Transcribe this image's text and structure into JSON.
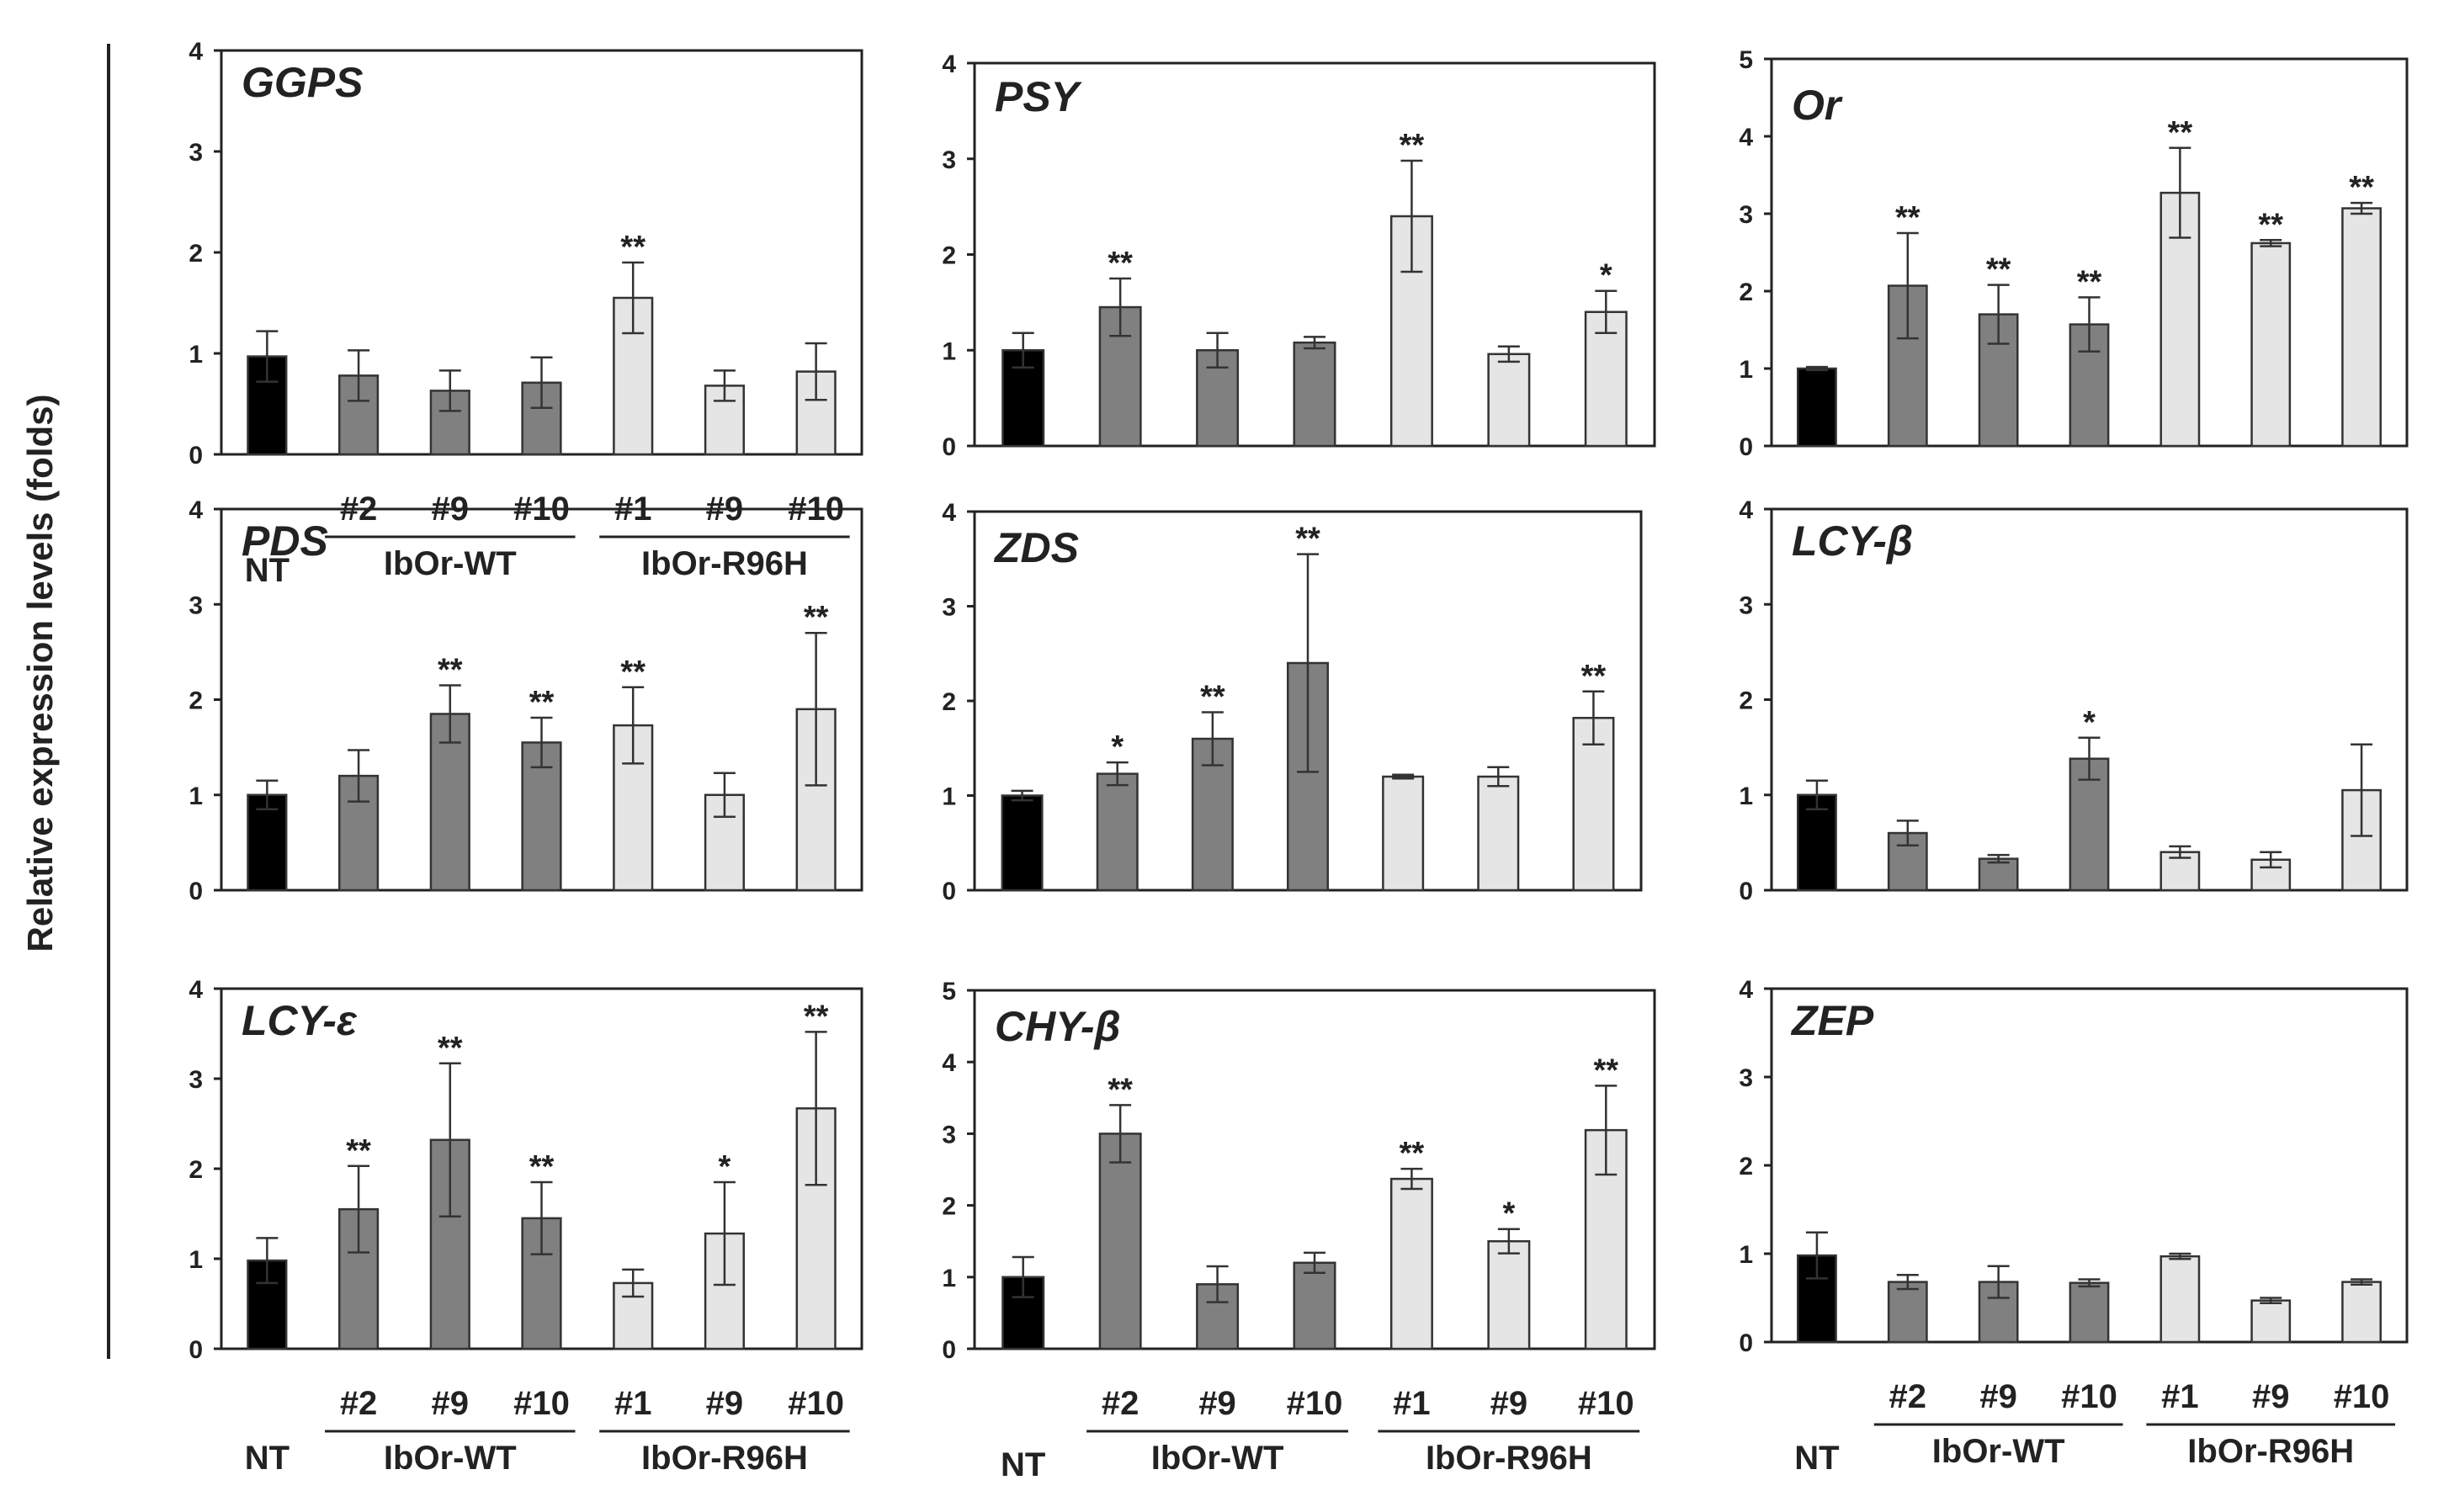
{
  "figure": {
    "ylabel": "Relative expression levels (folds)"
  },
  "chart_data": [
    {
      "type": "bar",
      "title": "GGPS",
      "ylim": [
        0,
        4
      ],
      "yticks": [
        "0",
        "1",
        "2",
        "3",
        "4"
      ],
      "categories": [
        "NT",
        "#2",
        "#9",
        "#10",
        "#1",
        "#9",
        "#10"
      ],
      "values": [
        0.97,
        0.78,
        0.63,
        0.71,
        1.55,
        0.68,
        0.82
      ],
      "errors": [
        0.25,
        0.25,
        0.2,
        0.25,
        0.35,
        0.15,
        0.28
      ],
      "marks": [
        "",
        "",
        "",
        "",
        "**",
        "",
        ""
      ],
      "groups": [
        "NT",
        "WT",
        "WT",
        "WT",
        "R96H",
        "R96H",
        "R96H"
      ],
      "xlabels": [
        "",
        "#2",
        "#9",
        "#10",
        "#1",
        "#9",
        "#10"
      ],
      "group_labels": {
        "nt": "NT",
        "wt": "IbOr-WT",
        "r96h": "IbOr-R96H"
      }
    },
    {
      "type": "bar",
      "title": "PSY",
      "ylim": [
        0,
        4
      ],
      "yticks": [
        "0",
        "1",
        "2",
        "3",
        "4"
      ],
      "categories": [
        "NT",
        "#2",
        "#9",
        "#10",
        "#1",
        "#9",
        "#10"
      ],
      "values": [
        1.0,
        1.45,
        1.0,
        1.08,
        2.4,
        0.96,
        1.4
      ],
      "errors": [
        0.18,
        0.3,
        0.18,
        0.06,
        0.58,
        0.08,
        0.22
      ],
      "marks": [
        "",
        "**",
        "",
        "",
        "**",
        "",
        "*"
      ],
      "groups": [
        "NT",
        "WT",
        "WT",
        "WT",
        "R96H",
        "R96H",
        "R96H"
      ],
      "xlabels": [
        "",
        "",
        "",
        "",
        "",
        "",
        ""
      ],
      "group_labels": {
        "nt": "",
        "wt": "",
        "r96h": ""
      }
    },
    {
      "type": "bar",
      "title": "Or",
      "ylim": [
        0,
        5
      ],
      "yticks": [
        "0",
        "1",
        "2",
        "3",
        "4",
        "5"
      ],
      "categories": [
        "NT",
        "#2",
        "#9",
        "#10",
        "#1",
        "#9",
        "#10"
      ],
      "values": [
        1.0,
        2.07,
        1.7,
        1.57,
        3.27,
        2.62,
        3.07
      ],
      "errors": [
        0.02,
        0.68,
        0.38,
        0.35,
        0.58,
        0.04,
        0.07
      ],
      "marks": [
        "",
        "**",
        "**",
        "**",
        "**",
        "**",
        "**"
      ],
      "groups": [
        "NT",
        "WT",
        "WT",
        "WT",
        "R96H",
        "R96H",
        "R96H"
      ],
      "xlabels": [
        "",
        "",
        "",
        "",
        "",
        "",
        ""
      ],
      "group_labels": {
        "nt": "",
        "wt": "",
        "r96h": ""
      }
    },
    {
      "type": "bar",
      "title": "PDS",
      "ylim": [
        0,
        4
      ],
      "yticks": [
        "0",
        "1",
        "2",
        "3",
        "4"
      ],
      "categories": [
        "NT",
        "#2",
        "#9",
        "#10",
        "#1",
        "#9",
        "#10"
      ],
      "values": [
        1.0,
        1.2,
        1.85,
        1.55,
        1.73,
        1.0,
        1.9
      ],
      "errors": [
        0.15,
        0.27,
        0.3,
        0.26,
        0.4,
        0.23,
        0.8
      ],
      "marks": [
        "",
        "",
        "**",
        "**",
        "**",
        "",
        "**"
      ],
      "groups": [
        "NT",
        "WT",
        "WT",
        "WT",
        "R96H",
        "R96H",
        "R96H"
      ],
      "xlabels": [
        "",
        "",
        "",
        "",
        "",
        "",
        ""
      ],
      "group_labels": {
        "nt": "",
        "wt": "",
        "r96h": ""
      }
    },
    {
      "type": "bar",
      "title": "ZDS",
      "ylim": [
        0,
        4
      ],
      "yticks": [
        "0",
        "1",
        "2",
        "3",
        "4"
      ],
      "categories": [
        "NT",
        "#2",
        "#9",
        "#10",
        "#1",
        "#9",
        "#10"
      ],
      "values": [
        1.0,
        1.23,
        1.6,
        2.4,
        1.2,
        1.2,
        1.82
      ],
      "errors": [
        0.05,
        0.12,
        0.28,
        1.15,
        0.02,
        0.1,
        0.28
      ],
      "marks": [
        "",
        "*",
        "**",
        "**",
        "",
        "",
        "**"
      ],
      "groups": [
        "NT",
        "WT",
        "WT",
        "WT",
        "R96H",
        "R96H",
        "R96H"
      ],
      "xlabels": [
        "",
        "",
        "",
        "",
        "",
        "",
        ""
      ],
      "group_labels": {
        "nt": "",
        "wt": "",
        "r96h": ""
      }
    },
    {
      "type": "bar",
      "title": "LCY-β",
      "ylim": [
        0,
        4
      ],
      "yticks": [
        "0",
        "1",
        "2",
        "3",
        "4"
      ],
      "categories": [
        "NT",
        "#2",
        "#9",
        "#10",
        "#1",
        "#9",
        "#10"
      ],
      "values": [
        1.0,
        0.6,
        0.33,
        1.38,
        0.4,
        0.32,
        1.05
      ],
      "errors": [
        0.15,
        0.13,
        0.04,
        0.22,
        0.06,
        0.08,
        0.48
      ],
      "marks": [
        "",
        "",
        "",
        "*",
        "",
        "",
        ""
      ],
      "groups": [
        "NT",
        "WT",
        "WT",
        "WT",
        "R96H",
        "R96H",
        "R96H"
      ],
      "xlabels": [
        "",
        "",
        "",
        "",
        "",
        "",
        ""
      ],
      "group_labels": {
        "nt": "",
        "wt": "",
        "r96h": ""
      }
    },
    {
      "type": "bar",
      "title": "LCY-ε",
      "ylim": [
        0,
        4
      ],
      "yticks": [
        "0",
        "1",
        "2",
        "3",
        "4"
      ],
      "categories": [
        "NT",
        "#2",
        "#9",
        "#10",
        "#1",
        "#9",
        "#10"
      ],
      "values": [
        0.98,
        1.55,
        2.32,
        1.45,
        0.73,
        1.28,
        2.67
      ],
      "errors": [
        0.25,
        0.48,
        0.85,
        0.4,
        0.15,
        0.57,
        0.85
      ],
      "marks": [
        "",
        "**",
        "**",
        "**",
        "",
        "*",
        "**"
      ],
      "groups": [
        "NT",
        "WT",
        "WT",
        "WT",
        "R96H",
        "R96H",
        "R96H"
      ],
      "xlabels": [
        "",
        "#2",
        "#9",
        "#10",
        "#1",
        "#9",
        "#10"
      ],
      "group_labels": {
        "nt": "NT",
        "wt": "IbOr-WT",
        "r96h": "IbOr-R96H"
      }
    },
    {
      "type": "bar",
      "title": "CHY-β",
      "ylim": [
        0,
        5
      ],
      "yticks": [
        "0",
        "1",
        "2",
        "3",
        "4",
        "5"
      ],
      "categories": [
        "NT",
        "#2",
        "#9",
        "#10",
        "#1",
        "#9",
        "#10"
      ],
      "values": [
        1.0,
        3.0,
        0.9,
        1.2,
        2.37,
        1.5,
        3.05
      ],
      "errors": [
        0.28,
        0.4,
        0.25,
        0.14,
        0.14,
        0.17,
        0.62
      ],
      "marks": [
        "",
        "**",
        "",
        "",
        "**",
        "*",
        "**"
      ],
      "groups": [
        "NT",
        "WT",
        "WT",
        "WT",
        "R96H",
        "R96H",
        "R96H"
      ],
      "xlabels": [
        "",
        "#2",
        "#9",
        "#10",
        "#1",
        "#9",
        "#10"
      ],
      "group_labels": {
        "nt": "NT",
        "wt": "IbOr-WT",
        "r96h": "IbOr-R96H"
      }
    },
    {
      "type": "bar",
      "title": "ZEP",
      "ylim": [
        0,
        4
      ],
      "yticks": [
        "0",
        "1",
        "2",
        "3",
        "4"
      ],
      "categories": [
        "NT",
        "#2",
        "#9",
        "#10",
        "#1",
        "#9",
        "#10"
      ],
      "values": [
        0.98,
        0.68,
        0.68,
        0.67,
        0.97,
        0.47,
        0.68
      ],
      "errors": [
        0.26,
        0.08,
        0.18,
        0.04,
        0.03,
        0.03,
        0.03
      ],
      "marks": [
        "",
        "",
        "",
        "",
        "",
        "",
        ""
      ],
      "groups": [
        "NT",
        "WT",
        "WT",
        "WT",
        "R96H",
        "R96H",
        "R96H"
      ],
      "xlabels": [
        "",
        "#2",
        "#9",
        "#10",
        "#1",
        "#9",
        "#10"
      ],
      "group_labels": {
        "nt": "NT",
        "wt": "IbOr-WT",
        "r96h": "IbOr-R96H"
      }
    }
  ],
  "colors": {
    "nt": "#000000",
    "wt": "#808080",
    "r96h": "#e5e5e5",
    "outline": "#333333",
    "axis": "#222222"
  }
}
